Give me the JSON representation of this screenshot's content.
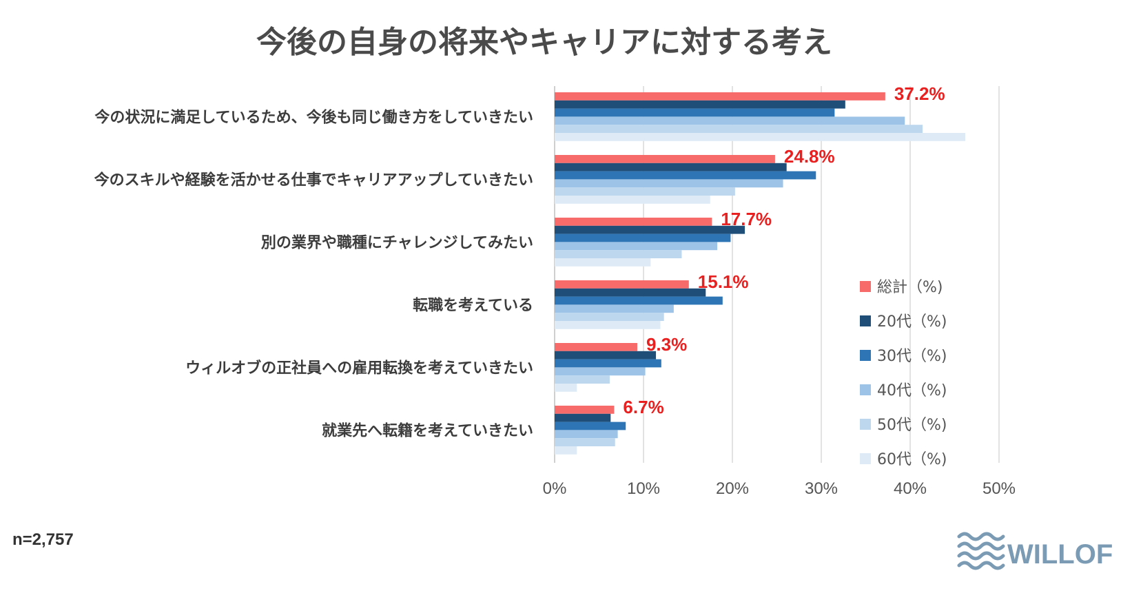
{
  "chart_data": {
    "type": "bar",
    "orientation": "horizontal",
    "title": "今後の自身の将来やキャリアに対する考え",
    "categories": [
      "今の状況に満足しているため、今後も同じ働き方をしていきたい",
      "今のスキルや経験を活かせる仕事でキャリアアップしていきたい",
      "別の業界や職種にチャレンジしてみたい",
      "転職を考えている",
      "ウィルオブの正社員への雇用転換を考えていきたい",
      "就業先へ転籍を考えていきたい"
    ],
    "series": [
      {
        "name": "総計（%)",
        "color": "#f86b6b",
        "values": [
          37.2,
          24.8,
          17.7,
          15.1,
          9.3,
          6.7
        ]
      },
      {
        "name": "20代（%)",
        "color": "#1f4e79",
        "values": [
          32.7,
          26.1,
          21.4,
          17.0,
          11.4,
          6.3
        ]
      },
      {
        "name": "30代（%)",
        "color": "#2e75b6",
        "values": [
          31.5,
          29.4,
          19.8,
          18.9,
          12.0,
          8.0
        ]
      },
      {
        "name": "40代（%)",
        "color": "#9dc3e6",
        "values": [
          39.4,
          25.7,
          18.3,
          13.4,
          10.2,
          7.1
        ]
      },
      {
        "name": "50代（%)",
        "color": "#bdd7ee",
        "values": [
          41.4,
          20.3,
          14.3,
          12.3,
          6.2,
          6.8
        ]
      },
      {
        "name": "60代（%)",
        "color": "#deebf7",
        "values": [
          46.2,
          17.5,
          10.8,
          11.9,
          2.5,
          2.5
        ]
      }
    ],
    "data_labels": [
      "37.2%",
      "24.8%",
      "17.7%",
      "15.1%",
      "9.3%",
      "6.7%"
    ],
    "xlim": [
      0,
      50
    ],
    "xticks": [
      0,
      10,
      20,
      30,
      40,
      50
    ],
    "xtick_labels": [
      "0%",
      "10%",
      "20%",
      "30%",
      "40%",
      "50%"
    ],
    "grid": true,
    "legend_position": "right",
    "sample_note": "n=2,757",
    "brand": "WILLOF"
  }
}
